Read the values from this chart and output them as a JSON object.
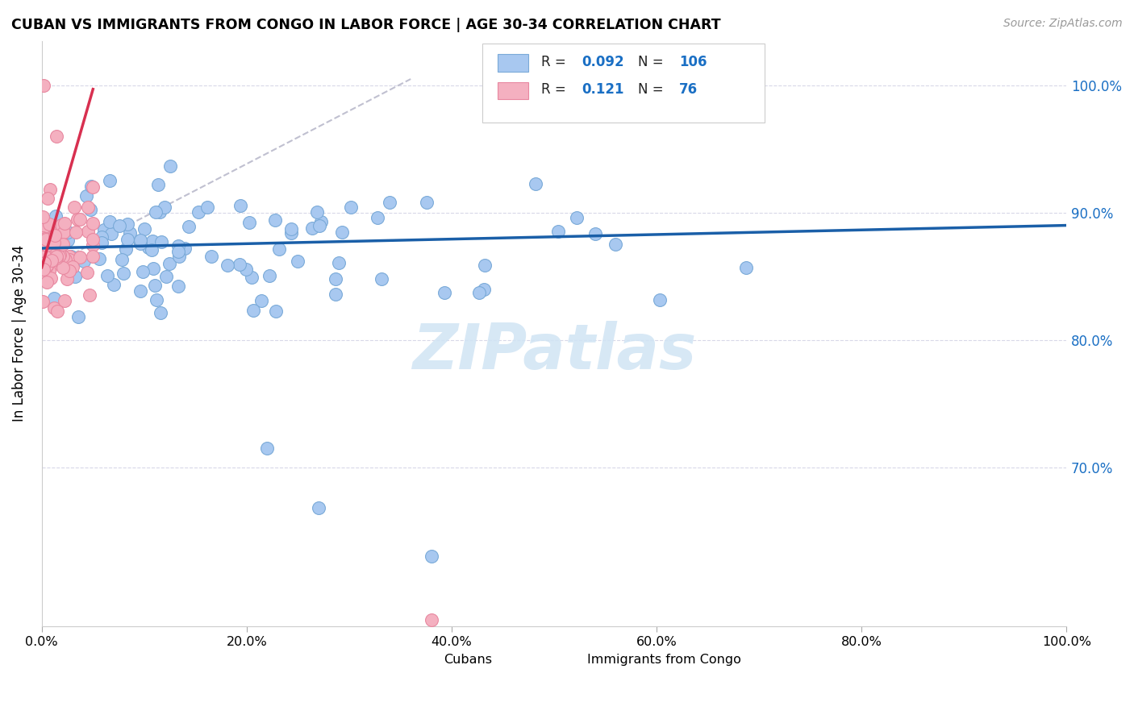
{
  "title": "CUBAN VS IMMIGRANTS FROM CONGO IN LABOR FORCE | AGE 30-34 CORRELATION CHART",
  "source": "Source: ZipAtlas.com",
  "ylabel": "In Labor Force | Age 30-34",
  "xmin": 0.0,
  "xmax": 1.0,
  "ymin": 0.575,
  "ymax": 1.035,
  "ytick_vals": [
    0.7,
    0.8,
    0.9,
    1.0
  ],
  "ytick_labels": [
    "70.0%",
    "80.0%",
    "90.0%",
    "100.0%"
  ],
  "xtick_vals": [
    0.0,
    0.2,
    0.4,
    0.6,
    0.8,
    1.0
  ],
  "xtick_labels": [
    "0.0%",
    "20.0%",
    "40.0%",
    "60.0%",
    "80.0%",
    "100.0%"
  ],
  "blue_color": "#a8c8f0",
  "blue_edge": "#7aaad8",
  "pink_color": "#f4b0c0",
  "pink_edge": "#e888a0",
  "trend_blue_color": "#1a5fa8",
  "trend_pink_color": "#d83050",
  "trend_gray_color": "#c0c0d0",
  "watermark": "ZIPatlas",
  "watermark_color": "#d0e4f4",
  "grid_color": "#d8d8e8",
  "legend_box_color": "#cccccc",
  "r1_val": "0.092",
  "n1_val": "106",
  "r2_val": "0.121",
  "n2_val": "76",
  "blue_N": 106,
  "pink_N": 76,
  "blue_R": 0.092,
  "pink_R": 0.121,
  "blue_seed": 7,
  "pink_seed": 13
}
